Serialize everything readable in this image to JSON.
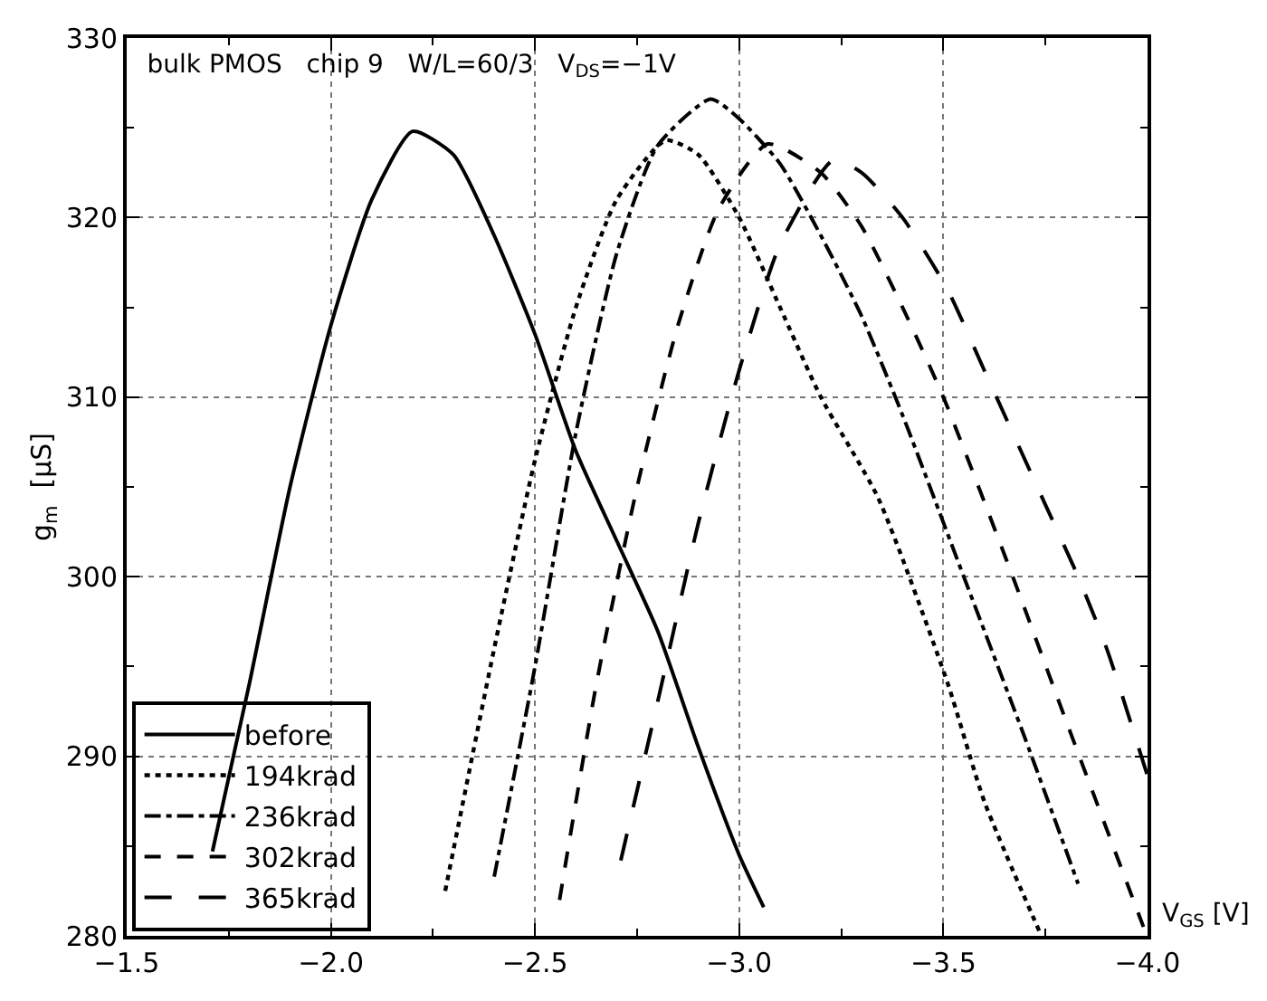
{
  "chart_data": {
    "type": "line",
    "title": "bulk PMOS   chip 9   W/L=60/3   V$_{DS}$=−1V",
    "xlabel": "V$_{GS}$ [V]",
    "ylabel": "g$_{m}$  [μS]",
    "xlim": [
      -1.5,
      -4.0
    ],
    "ylim": [
      280,
      330
    ],
    "xticks": [
      {
        "value": -1.5,
        "label": "−1.5"
      },
      {
        "value": -2.0,
        "label": "−2.0"
      },
      {
        "value": -2.5,
        "label": "−2.5"
      },
      {
        "value": -3.0,
        "label": "−3.0"
      },
      {
        "value": -3.5,
        "label": "−3.5"
      },
      {
        "value": -4.0,
        "label": "−4.0"
      }
    ],
    "yticks": [
      280,
      290,
      300,
      310,
      320,
      330
    ],
    "grid": true,
    "legend": "bottom left",
    "marker": "none",
    "series": [
      {
        "name": "before",
        "color": "#000000",
        "line_style": "solid",
        "x": [
          -1.71,
          -1.8,
          -1.9,
          -2.0,
          -2.1,
          -2.2,
          -2.3,
          -2.4,
          -2.5,
          -2.6,
          -2.7,
          -2.8,
          -2.9,
          -3.0,
          -3.06
        ],
        "values": [
          284.7,
          294,
          305,
          314,
          321,
          324.8,
          323.5,
          319,
          313.5,
          307,
          302,
          297,
          290.5,
          284.5,
          281.6
        ]
      },
      {
        "name": "194krad",
        "color": "#000000",
        "line_style": "dotted",
        "x": [
          -2.28,
          -2.4,
          -2.5,
          -2.6,
          -2.7,
          -2.82,
          -2.9,
          -3.0,
          -3.1,
          -3.2,
          -3.34,
          -3.51,
          -3.6,
          -3.74
        ],
        "values": [
          282.5,
          296,
          306.5,
          315,
          321,
          324.3,
          323.5,
          320,
          315,
          310,
          304.4,
          294.1,
          287.5,
          280
        ]
      },
      {
        "name": "236krad",
        "color": "#000000",
        "line_style": "dashdot",
        "x": [
          -2.4,
          -2.5,
          -2.6,
          -2.7,
          -2.8,
          -2.93,
          -3.0,
          -3.1,
          -3.2,
          -3.3,
          -3.4,
          -3.55,
          -3.7,
          -3.83
        ],
        "values": [
          283.3,
          295,
          308,
          318,
          324,
          326.6,
          325.5,
          323,
          319,
          314.5,
          309,
          300,
          291,
          282.9
        ]
      },
      {
        "name": "302krad",
        "color": "#000000",
        "line_style": "dashed",
        "x": [
          -2.56,
          -2.65,
          -2.75,
          -2.85,
          -2.95,
          -3.07,
          -3.2,
          -3.3,
          -3.4,
          -3.5,
          -3.67,
          -3.8,
          -3.99
        ],
        "values": [
          282,
          294,
          305,
          314,
          320.5,
          324.1,
          322.5,
          319.5,
          315,
          310,
          300,
          292,
          280.5
        ]
      },
      {
        "name": "365krad",
        "color": "#000000",
        "line_style": "longdash",
        "x": [
          -2.71,
          -2.8,
          -2.9,
          -3.0,
          -3.1,
          -3.23,
          -3.3,
          -3.4,
          -3.51,
          -3.6,
          -3.75,
          -3.83,
          -3.9,
          -4.0
        ],
        "values": [
          284.2,
          293,
          303,
          311.5,
          318.5,
          323.2,
          322.5,
          320,
          316,
          311.5,
          304,
          300,
          296,
          288.9
        ]
      }
    ]
  }
}
